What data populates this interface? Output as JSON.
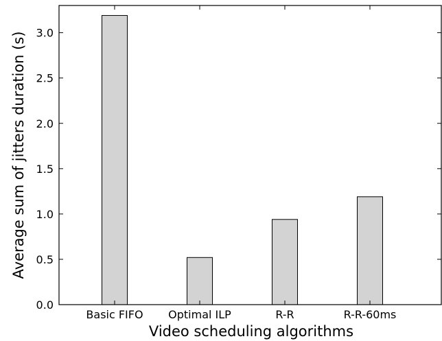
{
  "chart_data": {
    "type": "bar",
    "title": "",
    "xlabel": "Video scheduling algorithms",
    "ylabel": "Average sum of jitters duration (s)",
    "categories": [
      "Basic FIFO",
      "Optimal ILP",
      "R-R",
      "R-R-60ms"
    ],
    "values": [
      3.19,
      0.52,
      0.94,
      1.19
    ],
    "ylim": [
      0,
      3.3
    ],
    "yticks": [
      0.0,
      0.5,
      1.0,
      1.5,
      2.0,
      2.5,
      3.0
    ],
    "ytick_labels": [
      "0.0",
      "0.5",
      "1.0",
      "1.5",
      "2.0",
      "2.5",
      "3.0"
    ],
    "grid": false,
    "legend": "none",
    "colors": {
      "bar_fill": "#d3d3d3",
      "bar_edge": "#000000",
      "axis": "#000000"
    }
  }
}
